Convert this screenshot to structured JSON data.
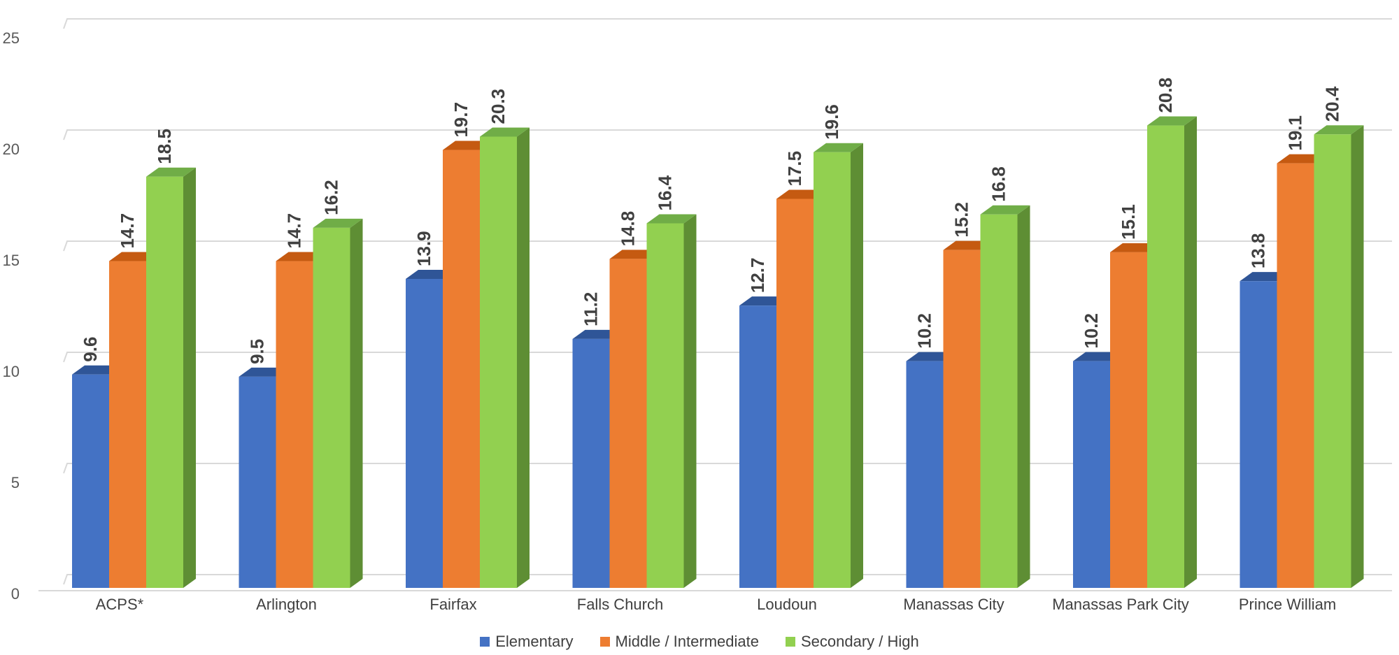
{
  "chart_data": {
    "type": "bar",
    "categories": [
      "ACPS*",
      "Arlington",
      "Fairfax",
      "Falls Church",
      "Loudoun",
      "Manassas City",
      "Manassas Park City",
      "Prince William"
    ],
    "series": [
      {
        "name": "Elementary",
        "values": [
          9.6,
          9.5,
          13.9,
          11.2,
          12.7,
          10.2,
          10.2,
          13.8
        ],
        "color": "#4472C4",
        "top": "#2F5597",
        "side": "#2F5597"
      },
      {
        "name": "Middle / Intermediate",
        "values": [
          14.7,
          14.7,
          19.7,
          14.8,
          17.5,
          15.2,
          15.1,
          19.1
        ],
        "color": "#ED7D31",
        "top": "#C55A11",
        "side": "#C55A11"
      },
      {
        "name": "Secondary / High",
        "values": [
          18.5,
          16.2,
          20.3,
          16.4,
          19.6,
          16.8,
          20.8,
          20.4
        ],
        "color": "#92D050",
        "top": "#70AD47",
        "side": "#5E8E34"
      }
    ],
    "y_ticks": [
      "0",
      "5",
      "10",
      "15",
      "20",
      "25"
    ],
    "ylim": [
      0,
      25
    ],
    "grid": true,
    "legend_position": "bottom",
    "title": "",
    "xlabel": "",
    "ylabel": ""
  }
}
